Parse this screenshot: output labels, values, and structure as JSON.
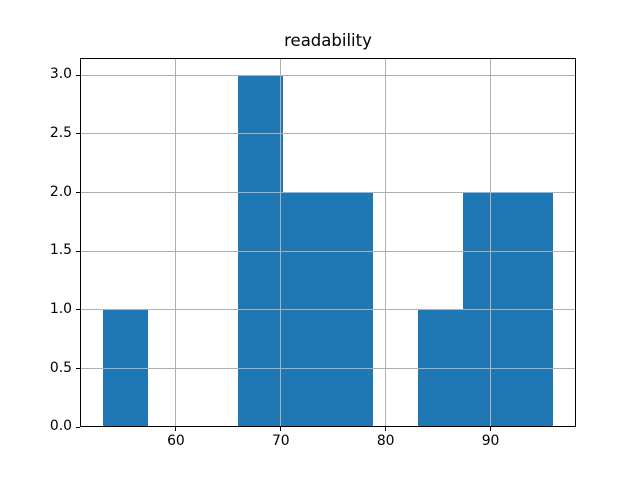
{
  "chart_data": {
    "type": "bar",
    "subtype": "histogram",
    "title": "readability",
    "bin_edges": [
      53.0,
      57.3,
      61.6,
      65.9,
      70.2,
      74.5,
      78.8,
      83.1,
      87.4,
      91.7,
      96.0
    ],
    "counts": [
      1,
      0,
      0,
      3,
      2,
      2,
      0,
      1,
      2,
      2
    ],
    "x_tick_values": [
      60,
      70,
      80,
      90
    ],
    "x_tick_labels": [
      "60",
      "70",
      "80",
      "90"
    ],
    "y_tick_values": [
      0.0,
      0.5,
      1.0,
      1.5,
      2.0,
      2.5,
      3.0
    ],
    "y_tick_labels": [
      "0.0",
      "0.5",
      "1.0",
      "1.5",
      "2.0",
      "2.5",
      "3.0"
    ],
    "xlim": [
      50.85,
      98.15
    ],
    "ylim": [
      0,
      3.15
    ],
    "xlabel": "",
    "ylabel": "",
    "grid": true,
    "grid_over_bars": true,
    "bar_color": "#1f77b4",
    "grid_color": "#b0b0b0",
    "axis_color": "#000000",
    "background_color": "#ffffff"
  }
}
